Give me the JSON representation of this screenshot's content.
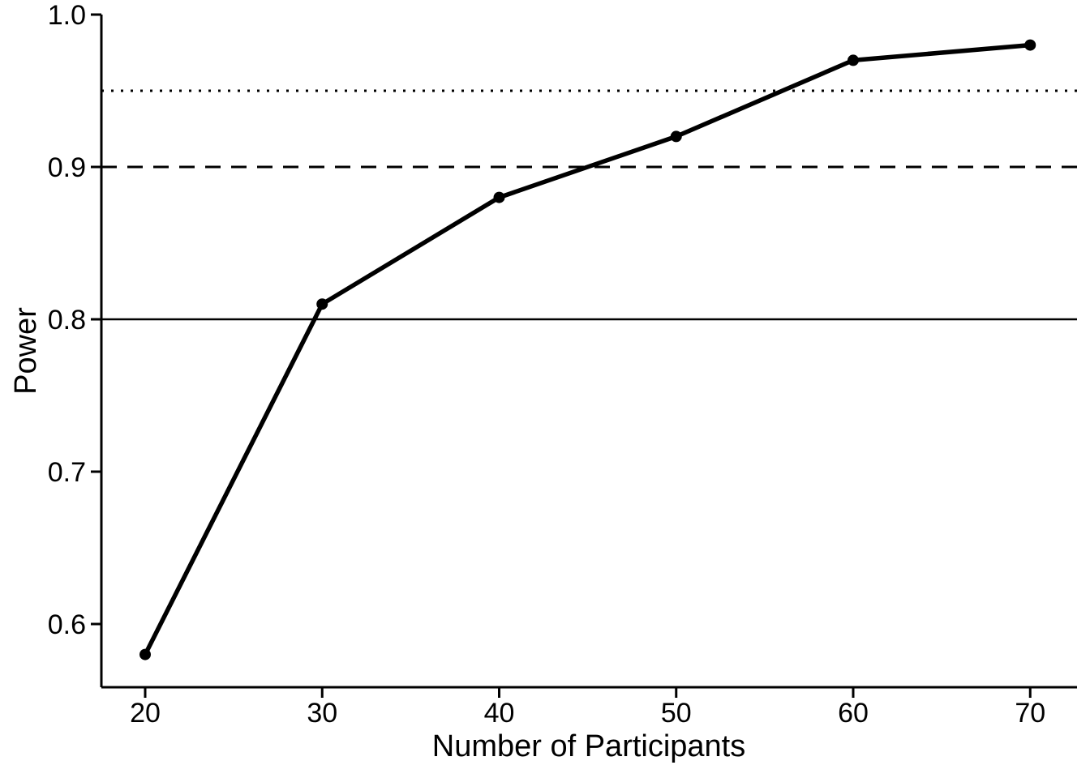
{
  "chart_data": {
    "type": "line",
    "title": "",
    "xlabel": "Number of Participants",
    "ylabel": "Power",
    "x": [
      20,
      30,
      40,
      50,
      60,
      70
    ],
    "series": [
      {
        "name": "Power",
        "values": [
          0.58,
          0.81,
          0.88,
          0.92,
          0.97,
          0.98
        ]
      }
    ],
    "x_ticks": {
      "values": [
        20,
        30,
        40,
        50,
        60,
        70
      ],
      "labels": [
        "20",
        "30",
        "40",
        "50",
        "60",
        "70"
      ]
    },
    "y_ticks": {
      "values": [
        0.6,
        0.7,
        0.8,
        0.9,
        1.0
      ],
      "labels": [
        "0.6",
        "0.7",
        "0.8",
        "0.9",
        "1.0"
      ]
    },
    "xlim": [
      17.5,
      72.7
    ],
    "ylim": [
      0.558,
      1.0
    ],
    "grid": false,
    "legend_position": "none",
    "reference_lines": [
      {
        "value": 0.8,
        "style": "solid"
      },
      {
        "value": 0.9,
        "style": "dashed"
      },
      {
        "value": 0.95,
        "style": "dotted"
      }
    ],
    "styles": {
      "line_color": "#000000",
      "marker": "filled-circle",
      "marker_color": "#000000",
      "axis_color": "#000000",
      "background_color": "#ffffff"
    }
  }
}
